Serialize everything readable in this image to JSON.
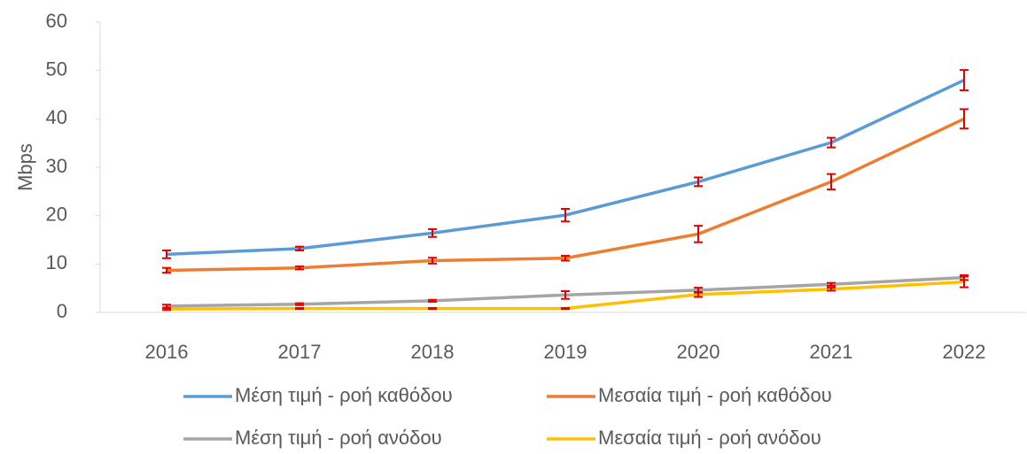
{
  "chart_data": {
    "type": "line",
    "y_label": "Mbps",
    "categories": [
      "2016",
      "2017",
      "2018",
      "2019",
      "2020",
      "2021",
      "2022"
    ],
    "series": [
      {
        "name": "Μέση τιμή - ροή καθόδου",
        "color": "#5b9bd5",
        "values": [
          12,
          13.2,
          16.4,
          20.1,
          27,
          35.1,
          48
        ],
        "errors": [
          0.8,
          0.4,
          0.8,
          1.3,
          0.9,
          1.0,
          2.1
        ]
      },
      {
        "name": "Μεσαία τιμή - ροή καθόδου",
        "color": "#ed7d31",
        "values": [
          8.7,
          9.2,
          10.7,
          11.2,
          16.2,
          27,
          40
        ],
        "errors": [
          0.5,
          0.3,
          0.6,
          0.5,
          1.7,
          1.6,
          2.0
        ]
      },
      {
        "name": "Μέση τιμή - ροή ανόδου",
        "color": "#a5a5a5",
        "values": [
          1.3,
          1.7,
          2.4,
          3.6,
          4.6,
          5.8,
          7.2
        ],
        "errors": [
          0.3,
          0.2,
          0.2,
          0.8,
          0.5,
          0.3,
          0.5
        ]
      },
      {
        "name": "Μεσαία τιμή - ροή ανόδου",
        "color": "#ffc000",
        "values": [
          0.7,
          0.8,
          0.8,
          0.8,
          3.7,
          4.8,
          6.3
        ],
        "errors": [
          0.2,
          0.1,
          0.1,
          0.1,
          0.5,
          0.3,
          1.1
        ]
      }
    ],
    "error_color": "#e00000",
    "ylim": [
      0,
      60
    ],
    "yticks": [
      0,
      10,
      20,
      30,
      40,
      50,
      60
    ],
    "grid": false
  }
}
